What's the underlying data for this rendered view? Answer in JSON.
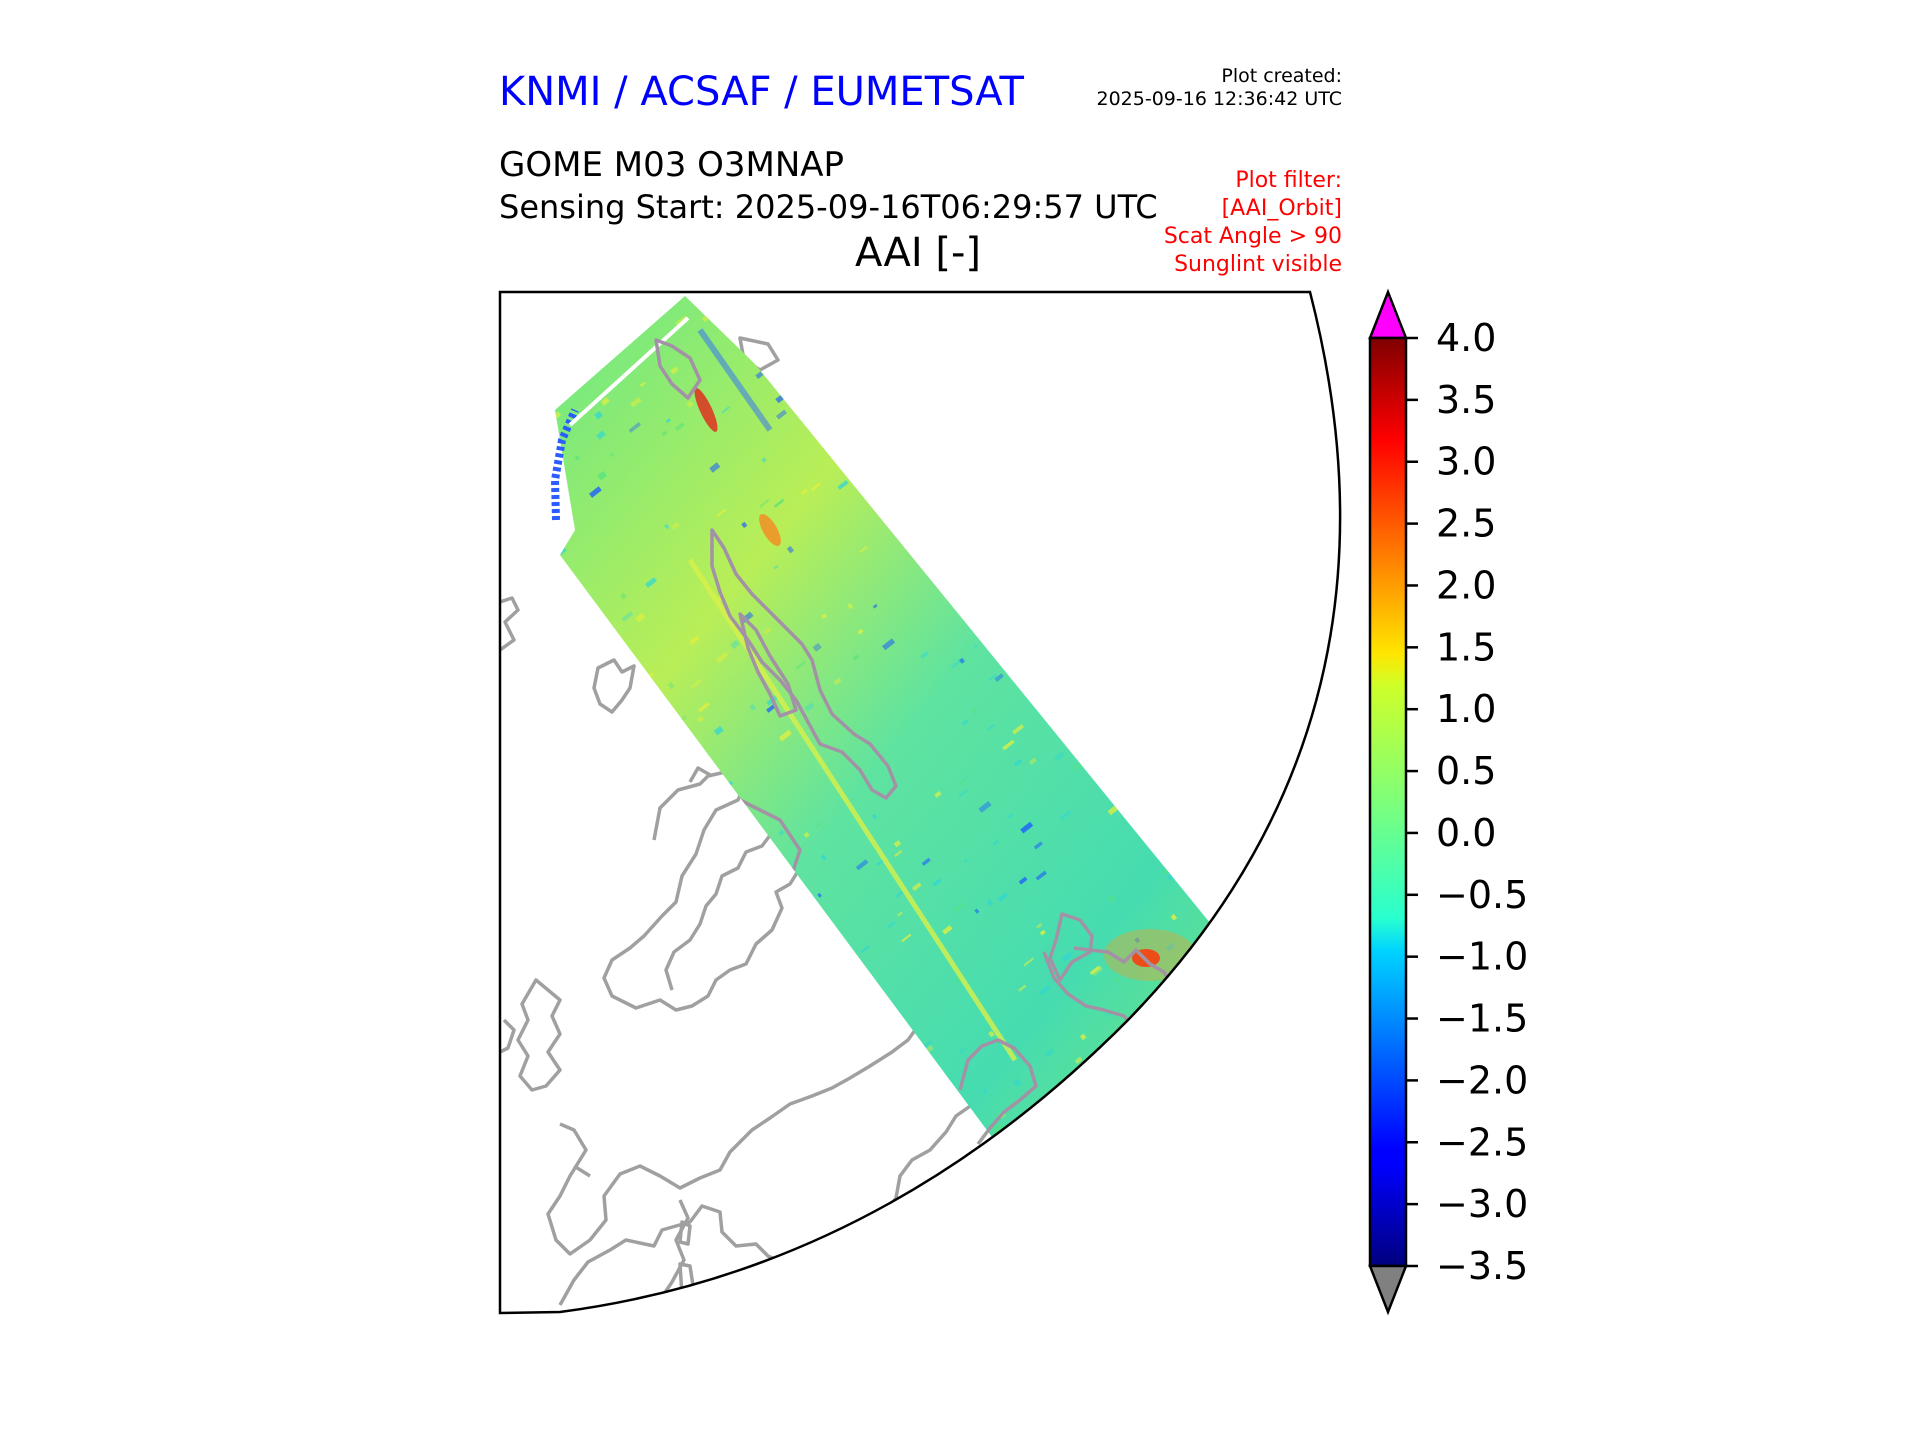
{
  "header": {
    "agency": "KNMI / ACSAF / EUMETSAT",
    "created_label": "Plot created:",
    "created_time": "2025-09-16 12:36:42 UTC",
    "product": "GOME M03 O3MNAP",
    "sensing_start": "Sensing Start: 2025-09-16T06:29:57 UTC",
    "variable_title": "AAI [-]"
  },
  "filters": [
    "Plot filter:",
    "[AAI_Orbit]",
    "Scat Angle > 90",
    "Sunglint visible"
  ],
  "map": {
    "projection": "polar-stereographic sector",
    "coastline_color": "#a0a0a0",
    "swath_colors": {
      "base": "#55e27e",
      "yellow": "#e8f03a",
      "cyan": "#2fd6d6",
      "blue": "#1b5cff",
      "red": "#e3261a",
      "orange": "#ff9a1a"
    }
  },
  "colorbar": {
    "ticks": [
      "4.0",
      "3.5",
      "3.0",
      "2.5",
      "2.0",
      "1.5",
      "1.0",
      "0.5",
      "0.0",
      "−0.5",
      "−1.0",
      "−1.5",
      "−2.0",
      "−2.5",
      "−3.0",
      "−3.5"
    ],
    "min": -3.5,
    "max": 4.0,
    "over_color": "#ff00ff",
    "under_color": "#808080",
    "colormap": "jet",
    "extend": "both"
  }
}
